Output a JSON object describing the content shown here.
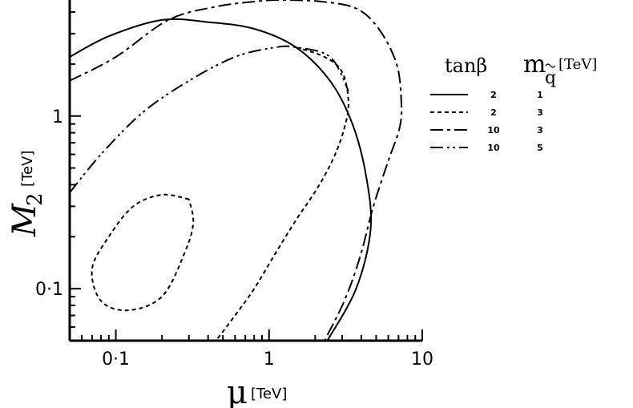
{
  "chart_data": {
    "type": "line",
    "x_scale": "log",
    "y_scale": "log",
    "xlim": [
      0.05,
      10
    ],
    "ylim": [
      0.05,
      4.7
    ],
    "xlabel": {
      "symbol": "μ",
      "unit": "[TeV]"
    },
    "ylabel": {
      "symbol": "M",
      "subscript": "2",
      "unit": "[TeV]"
    },
    "x_ticks": [
      {
        "value": 0.1,
        "label": "0·1"
      },
      {
        "value": 1,
        "label": "1"
      },
      {
        "value": 10,
        "label": "10"
      }
    ],
    "y_ticks": [
      {
        "value": 0.1,
        "label": "0·1"
      },
      {
        "value": 1,
        "label": "1"
      }
    ],
    "legend": {
      "position": "top-right",
      "header_col1": "tanβ",
      "header_col2_main": "m",
      "header_col2_sub": "q",
      "header_col2_unit": "[TeV]",
      "rows": [
        {
          "tanb": "2",
          "mq": "1",
          "dash": "none"
        },
        {
          "tanb": "2",
          "mq": "3",
          "dash": "5,4"
        },
        {
          "tanb": "10",
          "mq": "3",
          "dash": "16,5,4,5"
        },
        {
          "tanb": "10",
          "mq": "5",
          "dash": "16,5,3,4,3,5"
        }
      ]
    },
    "series": [
      {
        "tanb": "2",
        "mq": "1",
        "dash": "none",
        "points": [
          [
            0.05,
            2.2
          ],
          [
            0.09,
            2.9
          ],
          [
            0.2,
            3.6
          ],
          [
            0.4,
            3.5
          ],
          [
            0.8,
            3.2
          ],
          [
            1.5,
            2.5
          ],
          [
            2.5,
            1.6
          ],
          [
            3.5,
            0.9
          ],
          [
            4.3,
            0.45
          ],
          [
            4.6,
            0.22
          ],
          [
            3.7,
            0.1
          ],
          [
            2.4,
            0.05
          ]
        ]
      },
      {
        "tanb": "2",
        "mq": "3",
        "dash": "5,4",
        "points": [
          [
            1.5,
            2.5
          ],
          [
            2.3,
            2.2
          ],
          [
            3,
            1.8
          ],
          [
            3.3,
            1.2
          ],
          [
            3.1,
            0.85
          ],
          [
            2.7,
            0.6
          ],
          [
            2.3,
            0.45
          ],
          [
            1.9,
            0.34
          ],
          [
            1.5,
            0.25
          ],
          [
            1.1,
            0.16
          ],
          [
            0.8,
            0.1
          ],
          [
            0.6,
            0.07
          ],
          [
            0.45,
            0.05
          ]
        ]
      },
      {
        "tanb": "2",
        "mq": "3",
        "dash": "5,4",
        "points": [
          [
            0.3,
            0.33
          ],
          [
            0.2,
            0.35
          ],
          [
            0.13,
            0.3
          ],
          [
            0.09,
            0.2
          ],
          [
            0.07,
            0.13
          ],
          [
            0.08,
            0.085
          ],
          [
            0.12,
            0.075
          ],
          [
            0.2,
            0.09
          ],
          [
            0.28,
            0.16
          ],
          [
            0.32,
            0.24
          ],
          [
            0.3,
            0.33
          ]
        ]
      },
      {
        "tanb": "10",
        "mq": "3",
        "dash": "16,5,4,5",
        "points": [
          [
            0.05,
            1.6
          ],
          [
            0.1,
            2.2
          ],
          [
            0.22,
            3.6
          ],
          [
            0.45,
            4.3
          ],
          [
            0.8,
            4.6
          ],
          [
            1.2,
            4.7
          ],
          [
            2.2,
            4.6
          ],
          [
            3.7,
            4.2
          ],
          [
            5.2,
            3.2
          ],
          [
            6.8,
            2
          ],
          [
            7.3,
            1.2
          ],
          [
            7.1,
            0.85
          ],
          [
            6,
            0.55
          ],
          [
            4.8,
            0.3
          ],
          [
            3.9,
            0.15
          ],
          [
            3.1,
            0.085
          ],
          [
            2.3,
            0.05
          ]
        ]
      },
      {
        "tanb": "10",
        "mq": "5",
        "dash": "16,5,3,4,3,5",
        "points": [
          [
            0.05,
            0.36
          ],
          [
            0.08,
            0.6
          ],
          [
            0.15,
            1.05
          ],
          [
            0.3,
            1.6
          ],
          [
            0.6,
            2.2
          ],
          [
            1.1,
            2.5
          ],
          [
            1.5,
            2.5
          ],
          [
            2.5,
            2.2
          ],
          [
            3.3,
            1.4
          ]
        ]
      }
    ]
  }
}
